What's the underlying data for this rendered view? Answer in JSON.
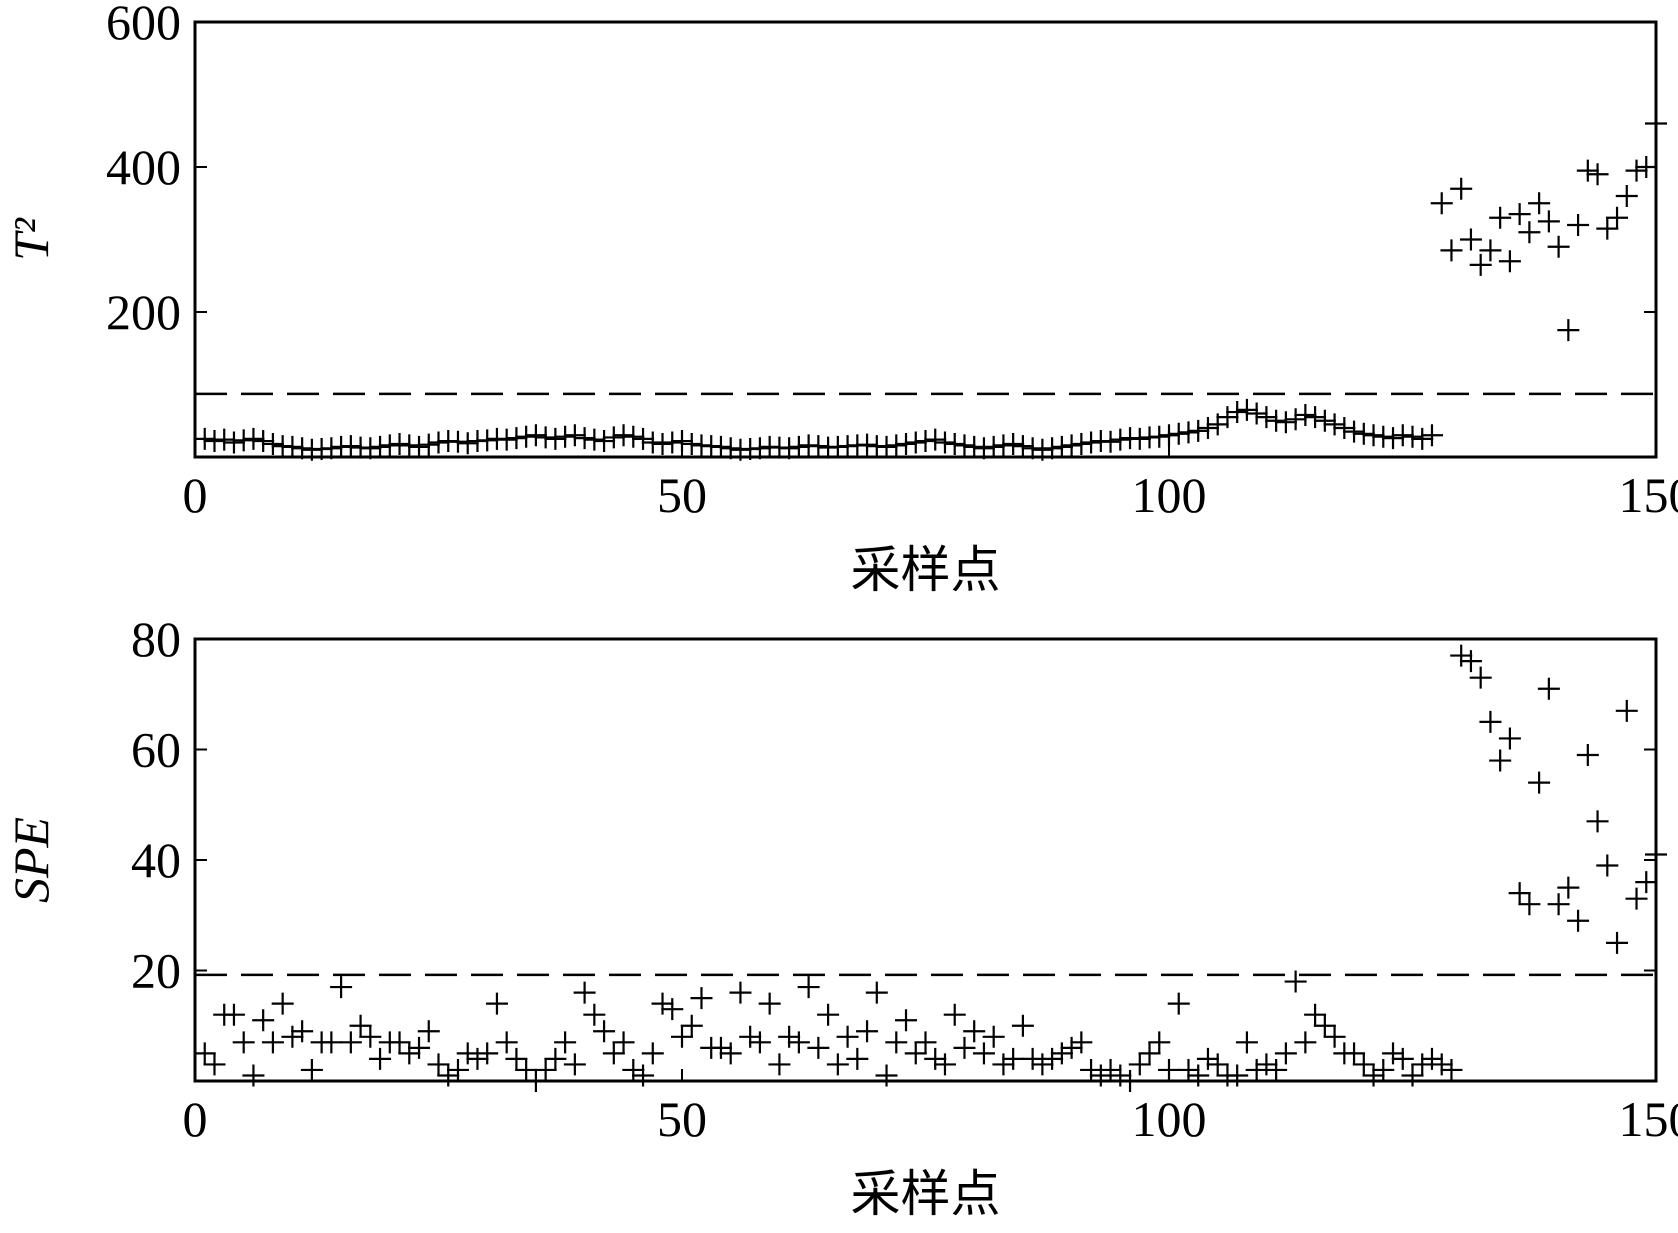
{
  "chart_data": [
    {
      "type": "scatter",
      "xlabel": "采样点",
      "ylabel": "T²",
      "xlim": [
        0,
        150
      ],
      "xticks": [
        0,
        50,
        100,
        150
      ],
      "ylim": [
        0,
        600
      ],
      "yticks": [
        200,
        400,
        600
      ],
      "control_limit": 87,
      "color": "#000000",
      "marker": "+",
      "x": [
        1,
        2,
        3,
        4,
        5,
        6,
        7,
        8,
        9,
        10,
        11,
        12,
        13,
        14,
        15,
        16,
        17,
        18,
        19,
        20,
        21,
        22,
        23,
        24,
        25,
        26,
        27,
        28,
        29,
        30,
        31,
        32,
        33,
        34,
        35,
        36,
        37,
        38,
        39,
        40,
        41,
        42,
        43,
        44,
        45,
        46,
        47,
        48,
        49,
        50,
        51,
        52,
        53,
        54,
        55,
        56,
        57,
        58,
        59,
        60,
        61,
        62,
        63,
        64,
        65,
        66,
        67,
        68,
        69,
        70,
        71,
        72,
        73,
        74,
        75,
        76,
        77,
        78,
        79,
        80,
        81,
        82,
        83,
        84,
        85,
        86,
        87,
        88,
        89,
        90,
        91,
        92,
        93,
        94,
        95,
        96,
        97,
        98,
        99,
        100,
        101,
        102,
        103,
        104,
        105,
        106,
        107,
        108,
        109,
        110,
        111,
        112,
        113,
        114,
        115,
        116,
        117,
        118,
        119,
        120,
        121,
        122,
        123,
        124,
        125,
        126,
        127,
        128,
        129,
        130,
        131,
        132,
        133,
        134,
        135,
        136,
        137,
        138,
        139,
        140,
        141,
        142,
        143,
        144,
        145,
        146,
        147,
        148,
        149,
        150
      ],
      "values": [
        25,
        22,
        24,
        20,
        23,
        25,
        22,
        18,
        15,
        14,
        12,
        10,
        11,
        12,
        14,
        15,
        13,
        12,
        14,
        16,
        18,
        16,
        14,
        17,
        20,
        22,
        21,
        19,
        22,
        23,
        25,
        24,
        26,
        28,
        30,
        27,
        25,
        28,
        30,
        26,
        24,
        22,
        27,
        30,
        28,
        25,
        20,
        18,
        20,
        22,
        18,
        16,
        15,
        14,
        12,
        10,
        11,
        12,
        14,
        13,
        12,
        14,
        16,
        15,
        13,
        14,
        15,
        16,
        17,
        15,
        14,
        16,
        18,
        20,
        22,
        24,
        20,
        18,
        16,
        14,
        12,
        14,
        16,
        18,
        15,
        12,
        10,
        12,
        14,
        16,
        18,
        20,
        22,
        21,
        24,
        26,
        25,
        27,
        28,
        30,
        32,
        34,
        36,
        40,
        45,
        55,
        62,
        65,
        60,
        55,
        50,
        48,
        52,
        58,
        55,
        50,
        45,
        40,
        35,
        32,
        30,
        28,
        26,
        30,
        28,
        25,
        30,
        350,
        285,
        370,
        300,
        265,
        285,
        330,
        270,
        335,
        310,
        350,
        325,
        290,
        175,
        320,
        395,
        390,
        315,
        330,
        360,
        395,
        400,
        460
      ]
    },
    {
      "type": "scatter",
      "xlabel": "采样点",
      "ylabel": "SPE",
      "xlim": [
        0,
        150
      ],
      "xticks": [
        0,
        50,
        100,
        150
      ],
      "ylim": [
        0,
        80
      ],
      "yticks": [
        20,
        40,
        60,
        80
      ],
      "control_limit": 19.2,
      "color": "#000000",
      "marker": "+",
      "x": [
        1,
        2,
        3,
        4,
        5,
        6,
        7,
        8,
        9,
        10,
        11,
        12,
        13,
        14,
        15,
        16,
        17,
        18,
        19,
        20,
        21,
        22,
        23,
        24,
        25,
        26,
        27,
        28,
        29,
        30,
        31,
        32,
        33,
        34,
        35,
        36,
        37,
        38,
        39,
        40,
        41,
        42,
        43,
        44,
        45,
        46,
        47,
        48,
        49,
        50,
        51,
        52,
        53,
        54,
        55,
        56,
        57,
        58,
        59,
        60,
        61,
        62,
        63,
        64,
        65,
        66,
        67,
        68,
        69,
        70,
        71,
        72,
        73,
        74,
        75,
        76,
        77,
        78,
        79,
        80,
        81,
        82,
        83,
        84,
        85,
        86,
        87,
        88,
        89,
        90,
        91,
        92,
        93,
        94,
        95,
        96,
        97,
        98,
        99,
        100,
        101,
        102,
        103,
        104,
        105,
        106,
        107,
        108,
        109,
        110,
        111,
        112,
        113,
        114,
        115,
        116,
        117,
        118,
        119,
        120,
        121,
        122,
        123,
        124,
        125,
        126,
        127,
        128,
        129,
        130,
        131,
        132,
        133,
        134,
        135,
        136,
        137,
        138,
        139,
        140,
        141,
        142,
        143,
        144,
        145,
        146,
        147,
        148,
        149,
        150
      ],
      "values": [
        5,
        3,
        12,
        12,
        7,
        1,
        11,
        7,
        14,
        8,
        9,
        2,
        7,
        7,
        17,
        7,
        10,
        8,
        4,
        7,
        7,
        5,
        6,
        9,
        3,
        1,
        2,
        5,
        4,
        5,
        14,
        7,
        4,
        2,
        0,
        2,
        4,
        7,
        3,
        16,
        12,
        9,
        5,
        7,
        2,
        1,
        5,
        14,
        13,
        8,
        10,
        15,
        6,
        6,
        5,
        16,
        8,
        7,
        14,
        3,
        8,
        7,
        17,
        6,
        12,
        3,
        8,
        4,
        9,
        16,
        1,
        7,
        11,
        5,
        7,
        4,
        3,
        12,
        6,
        9,
        5,
        8,
        3,
        4,
        10,
        4,
        3,
        4,
        5,
        6,
        7,
        2,
        1,
        2,
        1,
        0,
        3,
        5,
        7,
        2,
        14,
        2,
        1,
        4,
        3,
        1,
        1,
        7,
        2,
        3,
        2,
        5,
        18,
        7,
        12,
        10,
        8,
        5,
        5,
        3,
        1,
        2,
        5,
        4,
        1,
        3,
        4,
        3,
        2,
        77,
        76,
        73,
        65,
        58,
        62,
        34,
        32,
        54,
        71,
        32,
        35,
        29,
        59,
        47,
        39,
        25,
        67,
        33,
        36,
        41
      ]
    }
  ]
}
